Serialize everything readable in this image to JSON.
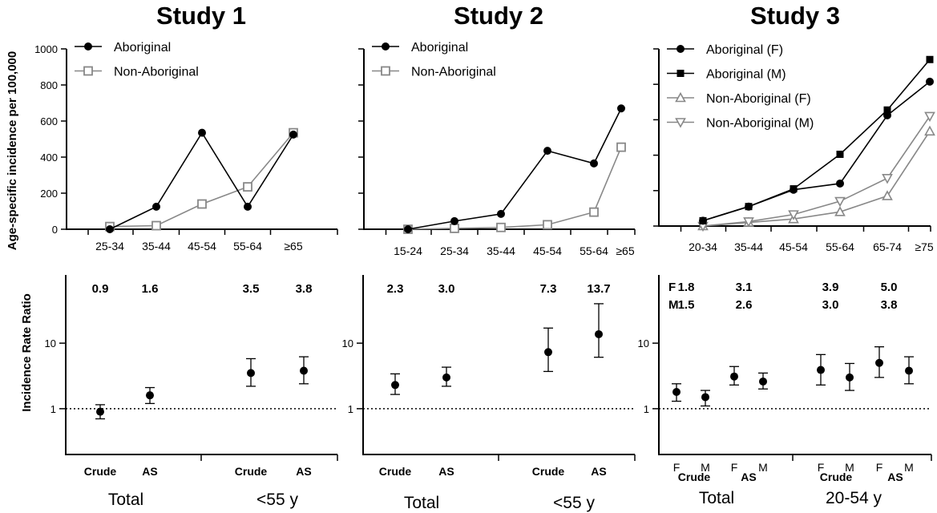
{
  "chart_data": [
    {
      "type": "line",
      "title": "Study 1",
      "ylabel": "Age-specific incidence per 100,000",
      "ylim": [
        0,
        1000
      ],
      "yticks": [
        0,
        200,
        400,
        600,
        800,
        1000
      ],
      "categories": [
        "25-34",
        "35-44",
        "45-54",
        "55-64",
        "≥65"
      ],
      "series": [
        {
          "name": "Aboriginal",
          "marker": "circle",
          "color": "#000000",
          "values": [
            0,
            125,
            535,
            125,
            525
          ]
        },
        {
          "name": "Non-Aboriginal",
          "marker": "square-open",
          "color": "#888888",
          "values": [
            15,
            20,
            140,
            235,
            535
          ]
        }
      ]
    },
    {
      "type": "line",
      "title": "Study 2",
      "ylim": [
        0,
        1000
      ],
      "yticks": [
        0,
        200,
        400,
        600,
        800,
        1000
      ],
      "categories": [
        "15-24",
        "25-34",
        "35-44",
        "45-54",
        "55-64",
        "≥65"
      ],
      "series": [
        {
          "name": "Aboriginal",
          "marker": "circle",
          "color": "#000000",
          "values": [
            0,
            45,
            85,
            435,
            365,
            670
          ]
        },
        {
          "name": "Non-Aboriginal",
          "marker": "square-open",
          "color": "#888888",
          "values": [
            0,
            5,
            10,
            25,
            95,
            455
          ]
        }
      ]
    },
    {
      "type": "line",
      "title": "Study 3",
      "ylim": [
        0,
        1000
      ],
      "yticks": [
        0,
        200,
        400,
        600,
        800,
        1000
      ],
      "categories": [
        "20-34",
        "35-44",
        "45-54",
        "55-64",
        "65-74",
        "≥75"
      ],
      "series": [
        {
          "name": "Aboriginal (F)",
          "marker": "circle",
          "color": "#000000",
          "values": [
            30,
            110,
            205,
            240,
            625,
            815
          ]
        },
        {
          "name": "Aboriginal (M)",
          "marker": "square",
          "color": "#000000",
          "values": [
            30,
            110,
            210,
            405,
            655,
            940
          ]
        },
        {
          "name": "Non-Aboriginal (F)",
          "marker": "triangle-up-open",
          "color": "#888888",
          "values": [
            0,
            20,
            40,
            80,
            170,
            535
          ]
        },
        {
          "name": "Non-Aboriginal (M)",
          "marker": "triangle-down-open",
          "color": "#888888",
          "values": [
            0,
            25,
            65,
            140,
            270,
            620
          ]
        }
      ]
    },
    {
      "type": "scatter",
      "ylabel": "Incidence Rate Ratio",
      "yscale": "log",
      "ylim": [
        0.2,
        110
      ],
      "yticks": [
        1,
        10
      ],
      "reference_line": 1,
      "points": [
        {
          "label": "Crude",
          "group": "Total",
          "value": 0.9,
          "lo": 0.7,
          "hi": 1.15,
          "text": "0.9"
        },
        {
          "label": "AS",
          "group": "Total",
          "value": 1.6,
          "lo": 1.2,
          "hi": 2.1,
          "text": "1.6"
        },
        {
          "label": "Crude",
          "group": "<55 y",
          "value": 3.5,
          "lo": 2.2,
          "hi": 5.8,
          "text": "3.5"
        },
        {
          "label": "AS",
          "group": "<55 y",
          "value": 3.8,
          "lo": 2.4,
          "hi": 6.2,
          "text": "3.8"
        }
      ],
      "groups": [
        "Total",
        "<55 y"
      ]
    },
    {
      "type": "scatter",
      "yscale": "log",
      "ylim": [
        0.2,
        110
      ],
      "yticks": [
        1,
        10
      ],
      "reference_line": 1,
      "points": [
        {
          "label": "Crude",
          "group": "Total",
          "value": 2.3,
          "lo": 1.65,
          "hi": 3.4,
          "text": "2.3"
        },
        {
          "label": "AS",
          "group": "Total",
          "value": 3.0,
          "lo": 2.2,
          "hi": 4.3,
          "text": "3.0"
        },
        {
          "label": "Crude",
          "group": "<55 y",
          "value": 7.3,
          "lo": 3.7,
          "hi": 17,
          "text": "7.3"
        },
        {
          "label": "AS",
          "group": "<55 y",
          "value": 13.7,
          "lo": 6.1,
          "hi": 40,
          "text": "13.7"
        }
      ],
      "groups": [
        "Total",
        "<55 y"
      ]
    },
    {
      "type": "scatter",
      "yscale": "log",
      "ylim": [
        0.2,
        110
      ],
      "yticks": [
        1,
        10
      ],
      "reference_line": 1,
      "row_labels": [
        "F",
        "M"
      ],
      "points": [
        {
          "sex": "F",
          "label": "Crude",
          "group": "Total",
          "value": 1.8,
          "lo": 1.3,
          "hi": 2.4,
          "text": "1.8"
        },
        {
          "sex": "M",
          "label": "Crude",
          "group": "Total",
          "value": 1.5,
          "lo": 1.1,
          "hi": 1.9,
          "text": "1.5"
        },
        {
          "sex": "F",
          "label": "AS",
          "group": "Total",
          "value": 3.1,
          "lo": 2.3,
          "hi": 4.4,
          "text": "3.1"
        },
        {
          "sex": "M",
          "label": "AS",
          "group": "Total",
          "value": 2.6,
          "lo": 2.0,
          "hi": 3.5,
          "text": "2.6"
        },
        {
          "sex": "F",
          "label": "Crude",
          "group": "20-54 y",
          "value": 3.9,
          "lo": 2.3,
          "hi": 6.7,
          "text": "3.9"
        },
        {
          "sex": "M",
          "label": "Crude",
          "group": "20-54 y",
          "value": 3.0,
          "lo": 1.9,
          "hi": 4.9,
          "text": "3.0"
        },
        {
          "sex": "F",
          "label": "AS",
          "group": "20-54 y",
          "value": 5.0,
          "lo": 3.0,
          "hi": 8.8,
          "text": "5.0"
        },
        {
          "sex": "M",
          "label": "AS",
          "group": "20-54 y",
          "value": 3.8,
          "lo": 2.4,
          "hi": 6.2,
          "text": "3.8"
        }
      ],
      "groups": [
        "Total",
        "20-54 y"
      ]
    }
  ]
}
